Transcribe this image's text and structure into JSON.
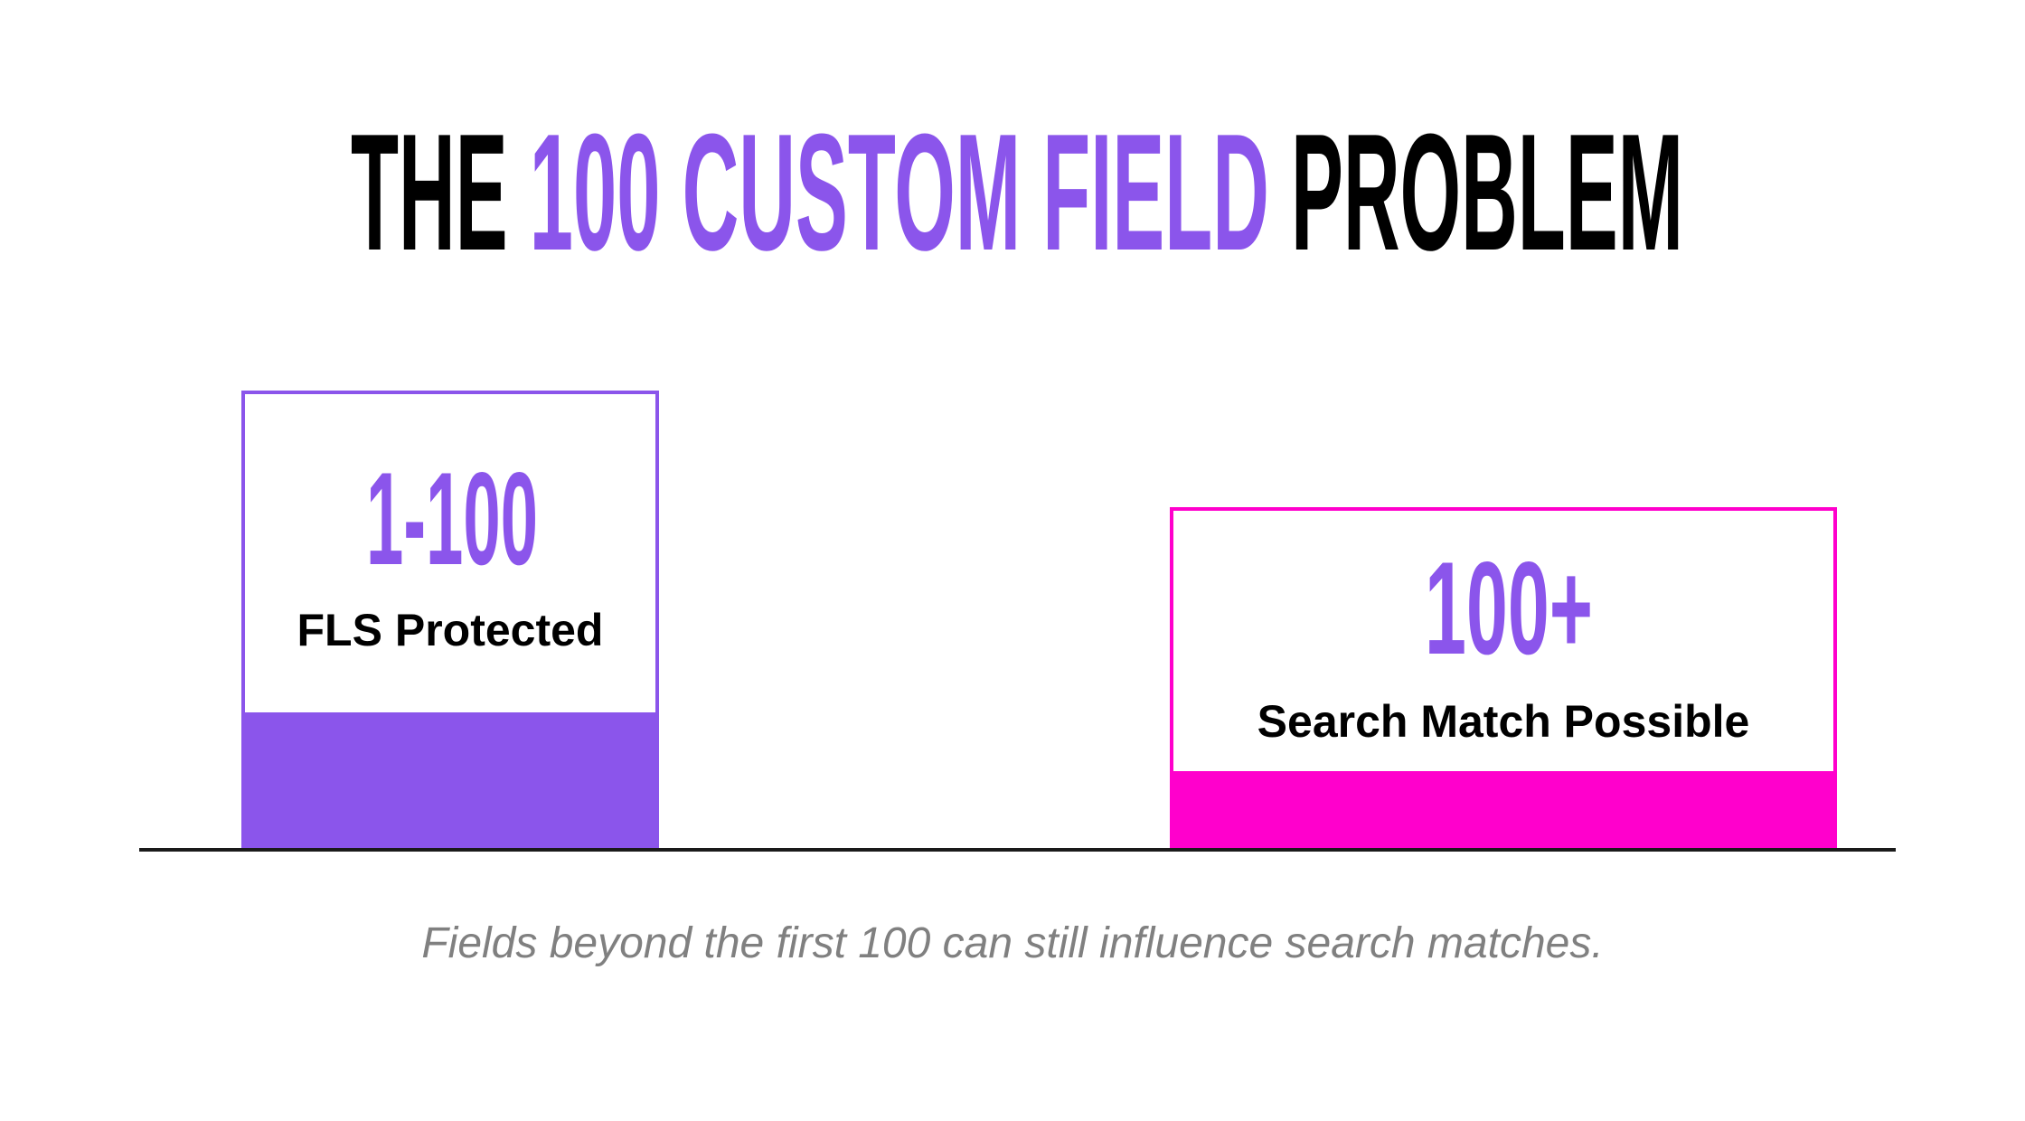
{
  "title": {
    "part1": "THE",
    "part2": "100 CUSTOM FIELD",
    "part3": "PROBLEM"
  },
  "bars": [
    {
      "value_label": "1-100",
      "label": "FLS Protected",
      "color": "#8B55EB"
    },
    {
      "value_label": "100+",
      "label": "Search Match Possible",
      "color": "#FF00CC"
    }
  ],
  "caption": "Fields beyond the first 100 can still influence search matches."
}
